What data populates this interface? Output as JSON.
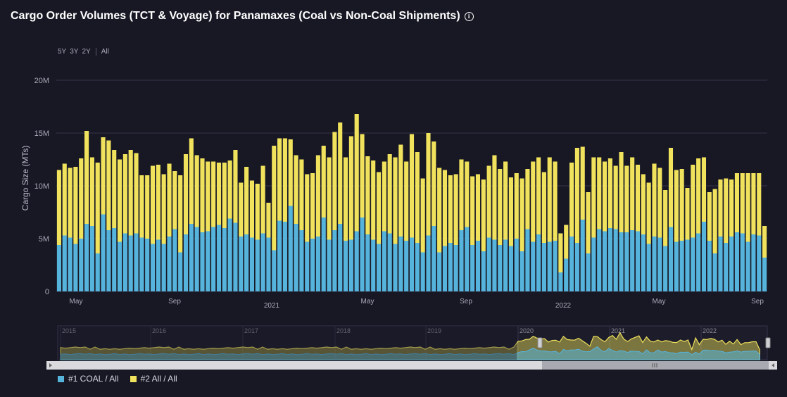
{
  "title": "Cargo Order Volumes (TCT & Voyage) for Panamaxes (Coal vs Non-Coal Shipments)",
  "range_buttons": [
    "5Y",
    "3Y",
    "2Y",
    "All"
  ],
  "colors": {
    "coal": "#56b4dc",
    "non_coal": "#f0e25c",
    "background": "#181825",
    "grid": "#34344a"
  },
  "chart_data": {
    "type": "bar",
    "stacked": true,
    "ylabel": "Cargo Size (MTs)",
    "ylim": [
      0,
      20000000
    ],
    "y_ticks": [
      "0",
      "5M",
      "10M",
      "15M",
      "20M"
    ],
    "x_ticks": [
      "May",
      "Sep",
      "2021",
      "May",
      "Sep",
      "2022",
      "May",
      "Sep"
    ],
    "period": "weekly, Mar 2020 – Sep 2022",
    "series": [
      {
        "name": "#1 COAL / All",
        "values": [
          4.4,
          5.3,
          5.1,
          4.5,
          5.0,
          6.4,
          6.2,
          3.6,
          7.3,
          5.8,
          6.0,
          4.7,
          5.5,
          5.3,
          5.5,
          5.1,
          5.0,
          4.5,
          4.9,
          4.5,
          5.2,
          5.9,
          3.7,
          5.4,
          6.4,
          6.1,
          5.6,
          5.7,
          6.1,
          6.3,
          6.0,
          6.9,
          6.5,
          5.2,
          5.4,
          5.1,
          4.9,
          5.5,
          5.1,
          3.9,
          6.7,
          6.6,
          8.1,
          6.4,
          5.8,
          4.7,
          5.0,
          5.2,
          7.0,
          4.9,
          5.8,
          6.4,
          4.8,
          4.9,
          5.7,
          7.0,
          5.4,
          4.9,
          4.5,
          5.7,
          5.5,
          4.5,
          5.2,
          4.8,
          5.1,
          4.6,
          3.7,
          5.3,
          6.2,
          3.7,
          4.3,
          4.6,
          4.4,
          5.8,
          6.1,
          4.4,
          4.8,
          3.8,
          5.1,
          4.9,
          4.4,
          4.9,
          4.3,
          5.0,
          3.8,
          5.9,
          4.7,
          5.4,
          4.6,
          4.7,
          4.8,
          1.8,
          3.1,
          5.2,
          4.6,
          6.8,
          3.6,
          5.1,
          5.9,
          5.7,
          6.0,
          5.9,
          5.6,
          5.6,
          5.8,
          5.7,
          5.4,
          4.5,
          5.2,
          5.1,
          4.3,
          6.1,
          4.7,
          4.8,
          4.9,
          5.1,
          5.5,
          6.6,
          4.8,
          3.6,
          5.2,
          4.6,
          5.2,
          5.6,
          5.5,
          4.7,
          5.4,
          5.3,
          3.2
        ]
      },
      {
        "name": "#2 All / All",
        "values": [
          7.1,
          6.8,
          6.6,
          7.3,
          7.6,
          8.8,
          6.5,
          8.6,
          7.3,
          8.5,
          7.4,
          7.8,
          7.5,
          8.1,
          7.6,
          5.9,
          6.0,
          7.4,
          7.1,
          6.6,
          6.9,
          5.5,
          7.3,
          7.6,
          8.1,
          6.8,
          7.0,
          6.6,
          6.2,
          5.9,
          6.2,
          5.5,
          6.9,
          5.1,
          6.4,
          5.4,
          5.3,
          6.4,
          3.3,
          9.9,
          7.8,
          7.9,
          6.3,
          6.5,
          6.7,
          6.4,
          6.2,
          7.7,
          6.8,
          7.8,
          9.3,
          9.6,
          7.9,
          9.8,
          11.1,
          7.9,
          7.4,
          7.5,
          6.8,
          6.6,
          7.5,
          8.2,
          8.7,
          7.5,
          9.8,
          8.6,
          7.0,
          9.7,
          8.0,
          8.0,
          7.2,
          6.4,
          6.7,
          6.7,
          6.2,
          6.5,
          6.3,
          6.8,
          6.8,
          8.0,
          7.2,
          7.4,
          6.5,
          6.2,
          6.9,
          5.7,
          7.6,
          7.3,
          6.7,
          8.0,
          7.5,
          3.7,
          3.2,
          7.0,
          9.0,
          6.9,
          5.8,
          7.6,
          6.8,
          6.6,
          6.6,
          6.0,
          7.6,
          6.3,
          6.9,
          6.3,
          5.7,
          5.8,
          6.9,
          6.6,
          5.3,
          7.5,
          6.8,
          6.8,
          4.9,
          6.9,
          7.1,
          6.1,
          4.6,
          6.1,
          5.4,
          6.1,
          5.4,
          5.6,
          5.7,
          6.5,
          5.8,
          5.9,
          3.0
        ]
      }
    ],
    "navigator": {
      "years": [
        "2015",
        "2016",
        "2017",
        "2018",
        "2019",
        "2020",
        "2021",
        "2022"
      ]
    }
  },
  "legend": [
    {
      "label": "#1 COAL / All"
    },
    {
      "label": "#2 All / All"
    }
  ]
}
